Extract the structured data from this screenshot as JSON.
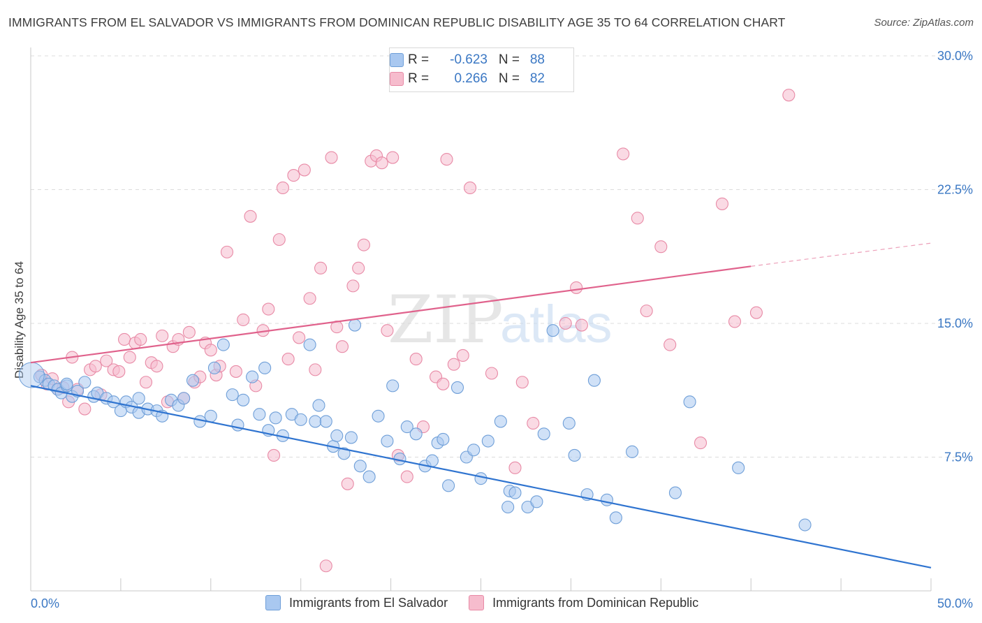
{
  "header": {
    "title": "IMMIGRANTS FROM EL SALVADOR VS IMMIGRANTS FROM DOMINICAN REPUBLIC DISABILITY AGE 35 TO 64 CORRELATION CHART",
    "source": "Source: ZipAtlas.com"
  },
  "watermark": {
    "zip": "ZIP",
    "atlas": "atlas"
  },
  "legend": {
    "rows": [
      {
        "r_label": "R =",
        "r_value": "-0.623",
        "n_label": "N =",
        "n_value": "88"
      },
      {
        "r_label": "R =",
        "r_value": "0.266",
        "n_label": "N =",
        "n_value": "82"
      }
    ],
    "series_names": [
      "Immigrants from El Salvador",
      "Immigrants from Dominican Republic"
    ]
  },
  "axes": {
    "x_tick_labels": [
      "0.0%",
      "50.0%"
    ],
    "y_tick_labels": [
      "7.5%",
      "15.0%",
      "22.5%",
      "30.0%"
    ],
    "y_title": "Disability Age 35 to 64"
  },
  "colors": {
    "blue_fill": "#a9c8f0",
    "blue_stroke": "#6f9fd8",
    "blue_line": "#2f74d0",
    "pink_fill": "#f6bccd",
    "pink_stroke": "#e88aa6",
    "pink_line": "#e0628c",
    "tick_text": "#3b78c4",
    "grid": "#dcdcdc"
  },
  "chart_data": {
    "type": "scatter",
    "xlim": [
      0,
      50
    ],
    "ylim": [
      0,
      30
    ],
    "x_ticks": [
      0,
      50
    ],
    "y_ticks": [
      7.5,
      15,
      22.5,
      30
    ],
    "grid": "horizontal dashed",
    "legend_position": "top-center",
    "series": [
      {
        "name": "Immigrants from El Salvador",
        "color": "#a9c8f0",
        "r": -0.623,
        "n": 88,
        "trend": {
          "x": [
            0,
            50
          ],
          "y": [
            11.5,
            1.3
          ]
        },
        "points": [
          [
            0.5,
            12.0
          ],
          [
            0.8,
            11.8
          ],
          [
            1.0,
            11.6
          ],
          [
            1.3,
            11.5
          ],
          [
            1.5,
            11.3
          ],
          [
            1.7,
            11.1
          ],
          [
            2.0,
            11.5
          ],
          [
            2.3,
            10.9
          ],
          [
            2.6,
            11.2
          ],
          [
            2.0,
            11.6
          ],
          [
            3.0,
            11.7
          ],
          [
            3.5,
            10.9
          ],
          [
            3.7,
            11.1
          ],
          [
            4.2,
            10.8
          ],
          [
            4.6,
            10.6
          ],
          [
            5.0,
            10.1
          ],
          [
            5.3,
            10.6
          ],
          [
            5.6,
            10.3
          ],
          [
            6.0,
            10.0
          ],
          [
            6.5,
            10.2
          ],
          [
            6.0,
            10.8
          ],
          [
            7.0,
            10.1
          ],
          [
            7.3,
            9.8
          ],
          [
            7.8,
            10.7
          ],
          [
            8.2,
            10.4
          ],
          [
            8.5,
            10.8
          ],
          [
            9.0,
            11.8
          ],
          [
            9.4,
            9.5
          ],
          [
            10.0,
            9.8
          ],
          [
            10.7,
            13.8
          ],
          [
            10.2,
            12.5
          ],
          [
            11.2,
            11.0
          ],
          [
            11.5,
            9.3
          ],
          [
            11.8,
            10.7
          ],
          [
            12.3,
            12.0
          ],
          [
            12.7,
            9.9
          ],
          [
            13.0,
            12.5
          ],
          [
            13.2,
            9.0
          ],
          [
            13.6,
            9.7
          ],
          [
            14.0,
            8.7
          ],
          [
            14.5,
            9.9
          ],
          [
            15.0,
            9.6
          ],
          [
            15.5,
            13.8
          ],
          [
            15.8,
            9.5
          ],
          [
            16.0,
            10.4
          ],
          [
            16.4,
            9.5
          ],
          [
            16.8,
            8.1
          ],
          [
            17.0,
            8.7
          ],
          [
            17.4,
            7.7
          ],
          [
            17.8,
            8.6
          ],
          [
            18.0,
            14.9
          ],
          [
            18.3,
            7.0
          ],
          [
            18.8,
            6.4
          ],
          [
            19.3,
            9.8
          ],
          [
            19.8,
            8.4
          ],
          [
            20.1,
            11.5
          ],
          [
            20.5,
            7.4
          ],
          [
            20.9,
            9.2
          ],
          [
            21.4,
            8.8
          ],
          [
            21.9,
            7.0
          ],
          [
            22.3,
            7.3
          ],
          [
            22.6,
            8.3
          ],
          [
            22.9,
            8.5
          ],
          [
            23.2,
            5.9
          ],
          [
            23.7,
            11.4
          ],
          [
            24.2,
            7.5
          ],
          [
            24.6,
            7.9
          ],
          [
            25.0,
            6.3
          ],
          [
            25.4,
            8.4
          ],
          [
            26.1,
            9.5
          ],
          [
            26.6,
            5.6
          ],
          [
            26.9,
            5.5
          ],
          [
            26.5,
            4.7
          ],
          [
            27.6,
            4.7
          ],
          [
            28.1,
            5.0
          ],
          [
            28.5,
            8.8
          ],
          [
            29.0,
            14.6
          ],
          [
            29.9,
            9.4
          ],
          [
            30.2,
            7.6
          ],
          [
            30.9,
            5.4
          ],
          [
            31.3,
            11.8
          ],
          [
            32.0,
            5.1
          ],
          [
            32.5,
            4.1
          ],
          [
            33.4,
            7.8
          ],
          [
            35.8,
            5.5
          ],
          [
            36.6,
            10.6
          ],
          [
            39.3,
            6.9
          ],
          [
            43.0,
            3.7
          ]
        ]
      },
      {
        "name": "Immigrants from Dominican Republic",
        "color": "#f6bccd",
        "r": 0.266,
        "n": 82,
        "trend": {
          "x": [
            0,
            40
          ],
          "y": [
            12.8,
            18.2
          ],
          "dashed_to": {
            "x": 50,
            "y": 19.5
          }
        },
        "points": [
          [
            0.6,
            12.1
          ],
          [
            0.9,
            11.6
          ],
          [
            1.2,
            11.9
          ],
          [
            1.5,
            11.3
          ],
          [
            1.8,
            11.4
          ],
          [
            2.1,
            10.6
          ],
          [
            2.3,
            13.1
          ],
          [
            2.6,
            11.3
          ],
          [
            3.0,
            10.2
          ],
          [
            3.3,
            12.4
          ],
          [
            3.6,
            12.6
          ],
          [
            3.9,
            11.0
          ],
          [
            4.2,
            12.9
          ],
          [
            4.6,
            12.4
          ],
          [
            4.9,
            12.3
          ],
          [
            5.2,
            14.1
          ],
          [
            5.5,
            13.1
          ],
          [
            5.8,
            13.9
          ],
          [
            6.1,
            14.1
          ],
          [
            6.4,
            11.7
          ],
          [
            6.7,
            12.8
          ],
          [
            7.0,
            12.6
          ],
          [
            7.3,
            14.3
          ],
          [
            7.6,
            10.6
          ],
          [
            7.9,
            13.7
          ],
          [
            8.2,
            14.1
          ],
          [
            8.5,
            10.8
          ],
          [
            8.8,
            14.5
          ],
          [
            9.1,
            11.7
          ],
          [
            9.4,
            12.0
          ],
          [
            9.7,
            13.9
          ],
          [
            10.0,
            13.5
          ],
          [
            10.3,
            12.1
          ],
          [
            10.5,
            12.6
          ],
          [
            10.9,
            19.0
          ],
          [
            11.4,
            12.3
          ],
          [
            11.8,
            15.2
          ],
          [
            12.2,
            21.0
          ],
          [
            12.5,
            11.5
          ],
          [
            12.9,
            14.6
          ],
          [
            13.2,
            15.8
          ],
          [
            13.5,
            7.6
          ],
          [
            13.8,
            19.7
          ],
          [
            14.0,
            22.6
          ],
          [
            14.3,
            13.0
          ],
          [
            14.6,
            23.3
          ],
          [
            14.9,
            14.2
          ],
          [
            15.2,
            23.6
          ],
          [
            15.5,
            16.4
          ],
          [
            15.8,
            12.4
          ],
          [
            16.1,
            18.1
          ],
          [
            16.4,
            1.4
          ],
          [
            16.7,
            24.3
          ],
          [
            17.0,
            14.8
          ],
          [
            17.3,
            13.7
          ],
          [
            17.6,
            6.0
          ],
          [
            17.9,
            17.1
          ],
          [
            18.2,
            18.1
          ],
          [
            18.5,
            19.4
          ],
          [
            18.9,
            24.1
          ],
          [
            19.2,
            24.4
          ],
          [
            19.5,
            24.0
          ],
          [
            19.8,
            14.6
          ],
          [
            20.1,
            24.3
          ],
          [
            20.4,
            7.6
          ],
          [
            20.9,
            6.4
          ],
          [
            21.4,
            13.0
          ],
          [
            21.8,
            9.2
          ],
          [
            22.5,
            12.0
          ],
          [
            22.9,
            11.6
          ],
          [
            23.1,
            24.2
          ],
          [
            23.5,
            12.7
          ],
          [
            24.0,
            13.2
          ],
          [
            24.4,
            22.6
          ],
          [
            25.6,
            12.2
          ],
          [
            26.9,
            6.9
          ],
          [
            27.3,
            11.7
          ],
          [
            27.9,
            9.4
          ],
          [
            29.7,
            15.0
          ],
          [
            30.3,
            17.0
          ],
          [
            30.6,
            14.9
          ],
          [
            32.9,
            24.5
          ],
          [
            33.7,
            20.9
          ],
          [
            34.2,
            15.7
          ],
          [
            35.0,
            19.3
          ],
          [
            35.5,
            13.8
          ],
          [
            37.2,
            8.3
          ],
          [
            38.4,
            21.7
          ],
          [
            39.1,
            15.1
          ],
          [
            40.3,
            15.6
          ],
          [
            42.1,
            27.8
          ]
        ]
      }
    ]
  }
}
